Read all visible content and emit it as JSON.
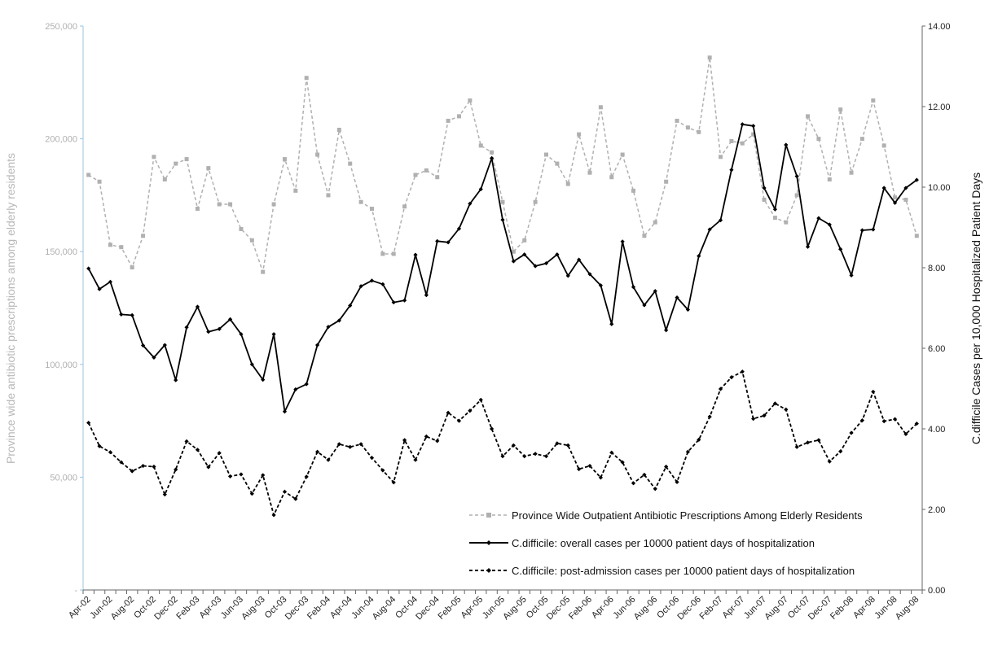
{
  "chart_data": {
    "type": "line",
    "title": "",
    "xlabel": "",
    "ylabel_left": "Province wide antibiotic prescriptions among elderly residents",
    "ylabel_right": "C.difficile Cases per 10,000 Hospitalized Patient Days",
    "ylim_left": [
      0,
      250000
    ],
    "ylim_right": [
      0,
      14
    ],
    "left_ticks": [
      "-",
      "50,000",
      "100,000",
      "150,000",
      "200,000",
      "250,000"
    ],
    "left_tick_values": [
      0,
      50000,
      100000,
      150000,
      200000,
      250000
    ],
    "right_ticks": [
      "0.00",
      "2.00",
      "4.00",
      "6.00",
      "8.00",
      "10.00",
      "12.00",
      "14.00"
    ],
    "right_tick_values": [
      0,
      2,
      4,
      6,
      8,
      10,
      12,
      14
    ],
    "x": [
      "Apr-02",
      "May-02",
      "Jun-02",
      "Jul-02",
      "Aug-02",
      "Sep-02",
      "Oct-02",
      "Nov-02",
      "Dec-02",
      "Jan-03",
      "Feb-03",
      "Mar-03",
      "Apr-03",
      "May-03",
      "Jun-03",
      "Jul-03",
      "Aug-03",
      "Sep-03",
      "Oct-03",
      "Nov-03",
      "Dec-03",
      "Jan-04",
      "Feb-04",
      "Mar-04",
      "Apr-04",
      "May-04",
      "Jun-04",
      "Jul-04",
      "Aug-04",
      "Sep-04",
      "Oct-04",
      "Nov-04",
      "Dec-04",
      "Jan-05",
      "Feb-05",
      "Mar-05",
      "Apr-05",
      "May-05",
      "Jun-05",
      "Jul-05",
      "Aug-05",
      "Sep-05",
      "Oct-05",
      "Nov-05",
      "Dec-05",
      "Jan-06",
      "Feb-06",
      "Mar-06",
      "Apr-06",
      "May-06",
      "Jun-06",
      "Jul-06",
      "Aug-06",
      "Sep-06",
      "Oct-06",
      "Nov-06",
      "Dec-06",
      "Jan-07",
      "Feb-07",
      "Mar-07",
      "Apr-07",
      "May-07",
      "Jun-07",
      "Jul-07",
      "Aug-07",
      "Sep-07",
      "Oct-07",
      "Nov-07",
      "Dec-07",
      "Jan-08",
      "Feb-08",
      "Mar-08",
      "Apr-08",
      "May-08",
      "Jun-08",
      "Jul-08",
      "Aug-08"
    ],
    "x_labels": [
      "Apr-02",
      "Jun-02",
      "Aug-02",
      "Oct-02",
      "Dec-02",
      "Feb-03",
      "Apr-03",
      "Jun-03",
      "Aug-03",
      "Oct-03",
      "Dec-03",
      "Feb-04",
      "Apr-04",
      "Jun-04",
      "Aug-04",
      "Oct-04",
      "Dec-04",
      "Feb-05",
      "Apr-05",
      "Jun-05",
      "Aug-05",
      "Oct-05",
      "Dec-05",
      "Feb-06",
      "Apr-06",
      "Jun-06",
      "Aug-06",
      "Oct-06",
      "Dec-06",
      "Feb-07",
      "Apr-07",
      "Jun-07",
      "Aug-07",
      "Oct-07",
      "Dec-07",
      "Feb-08",
      "Apr-08",
      "Jun-08",
      "Aug-08"
    ],
    "legend_position": "bottom-right",
    "series": [
      {
        "name": "Province Wide Outpatient Antibiotic Prescriptions Among Elderly Residents",
        "axis": "left",
        "color": "#b0b0b0",
        "style": "dashed",
        "marker": "square",
        "values": [
          184000,
          181000,
          153000,
          152000,
          143000,
          157000,
          192000,
          182000,
          189000,
          191000,
          169000,
          187000,
          171000,
          171000,
          160000,
          155000,
          141000,
          171000,
          191000,
          177000,
          227000,
          193000,
          175000,
          204000,
          189000,
          172000,
          169000,
          149000,
          149000,
          170000,
          184000,
          186000,
          183000,
          208000,
          210000,
          217000,
          197000,
          194000,
          172000,
          150000,
          155000,
          172000,
          193000,
          189000,
          180000,
          202000,
          185000,
          214000,
          183000,
          193000,
          177000,
          157000,
          163000,
          181000,
          208000,
          205000,
          203000,
          236000,
          192000,
          199000,
          198000,
          202000,
          173000,
          165000,
          163000,
          175000,
          210000,
          200000,
          182000,
          213000,
          185000,
          200000,
          217000,
          197000,
          174000,
          173000,
          157000
        ]
      },
      {
        "name": "C.difficile: overall cases per 10000 patient days of hospitalization",
        "axis": "right",
        "color": "#000000",
        "style": "solid",
        "marker": "diamond",
        "values": [
          7.98,
          7.47,
          7.65,
          6.84,
          6.82,
          6.07,
          5.77,
          6.08,
          5.21,
          6.52,
          7.03,
          6.41,
          6.48,
          6.72,
          6.35,
          5.6,
          5.22,
          6.35,
          4.43,
          4.98,
          5.11,
          6.08,
          6.53,
          6.69,
          7.06,
          7.54,
          7.68,
          7.59,
          7.14,
          7.19,
          8.32,
          7.32,
          8.66,
          8.63,
          8.97,
          9.59,
          9.95,
          10.72,
          9.19,
          8.16,
          8.33,
          8.04,
          8.11,
          8.33,
          7.8,
          8.2,
          7.84,
          7.56,
          6.6,
          8.65,
          7.52,
          7.07,
          7.42,
          6.45,
          7.26,
          6.96,
          8.29,
          8.95,
          9.18,
          10.43,
          11.56,
          11.52,
          9.98,
          9.45,
          11.05,
          10.27,
          8.52,
          9.23,
          9.07,
          8.46,
          7.81,
          8.93,
          8.95,
          9.98,
          9.61,
          9.98,
          10.18
        ]
      },
      {
        "name": "C.difficile: post-admission cases per 10000 patient days of hospitalization",
        "axis": "right",
        "color": "#000000",
        "style": "dashed",
        "marker": "diamond",
        "values": [
          4.15,
          3.57,
          3.42,
          3.17,
          2.95,
          3.08,
          3.06,
          2.37,
          2.99,
          3.69,
          3.48,
          3.05,
          3.4,
          2.82,
          2.87,
          2.39,
          2.85,
          1.86,
          2.44,
          2.26,
          2.81,
          3.43,
          3.23,
          3.62,
          3.55,
          3.62,
          3.28,
          2.97,
          2.67,
          3.72,
          3.23,
          3.81,
          3.7,
          4.4,
          4.2,
          4.45,
          4.72,
          4.0,
          3.32,
          3.59,
          3.32,
          3.38,
          3.32,
          3.64,
          3.59,
          3.0,
          3.08,
          2.79,
          3.41,
          3.17,
          2.65,
          2.86,
          2.51,
          3.06,
          2.68,
          3.43,
          3.73,
          4.3,
          4.99,
          5.28,
          5.42,
          4.25,
          4.33,
          4.63,
          4.48,
          3.55,
          3.66,
          3.72,
          3.19,
          3.44,
          3.9,
          4.21,
          4.92,
          4.19,
          4.24,
          3.87,
          4.13
        ]
      }
    ]
  }
}
